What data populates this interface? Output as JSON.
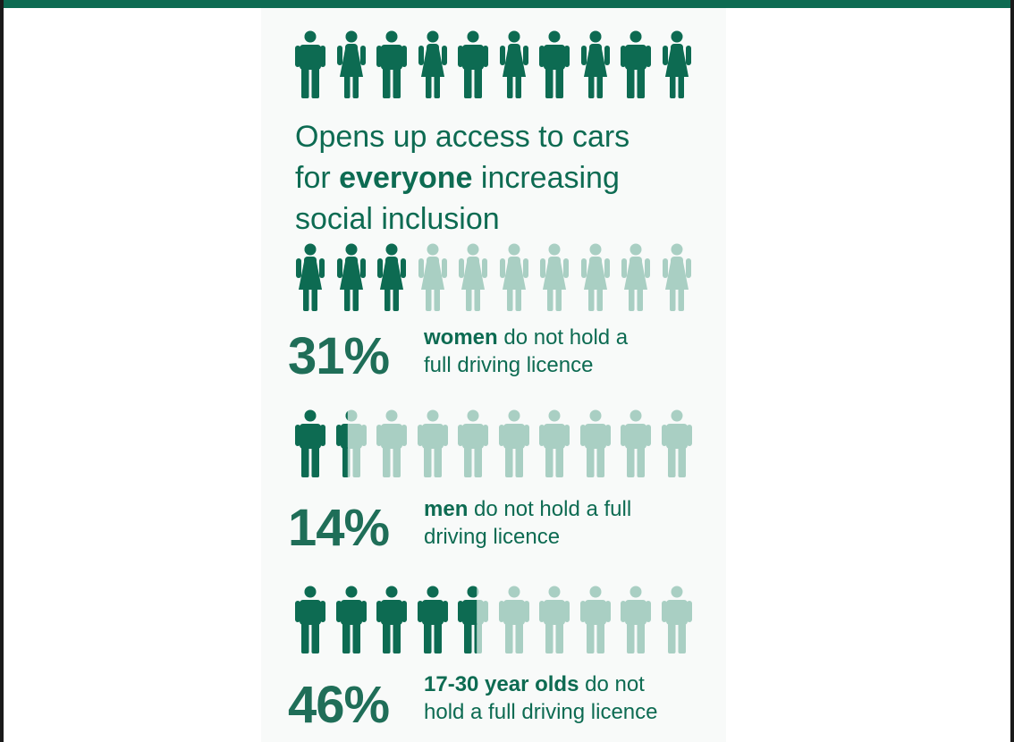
{
  "headline": {
    "line1": "Opens up access to cars",
    "line2_pre": "for ",
    "line2_bold": "everyone",
    "line2_post": " increasing",
    "line3": "social inclusion"
  },
  "colors": {
    "dark": "#0d6b52",
    "light": "#a9cfc3",
    "bar": "#0d6b52"
  },
  "icons": {
    "man": "man-icon",
    "woman": "woman-icon"
  },
  "rows": {
    "intro": {
      "figures": [
        "man",
        "woman",
        "man",
        "woman",
        "man",
        "woman",
        "man",
        "woman",
        "man",
        "woman"
      ],
      "filled": 10
    },
    "women": {
      "figures": [
        "woman",
        "woman",
        "woman",
        "woman",
        "woman",
        "woman",
        "woman",
        "woman",
        "woman",
        "woman"
      ],
      "filled": 3.1
    },
    "men": {
      "figures": [
        "man",
        "man",
        "man",
        "man",
        "man",
        "man",
        "man",
        "man",
        "man",
        "man"
      ],
      "filled": 1.4
    },
    "young": {
      "figures": [
        "man",
        "man",
        "man",
        "man",
        "man",
        "man",
        "man",
        "man",
        "man",
        "man"
      ],
      "filled": 4.6
    }
  },
  "stats": {
    "women": {
      "value": "31%",
      "bold": "women",
      "rest1": " do not hold a",
      "rest2": "full driving licence"
    },
    "men": {
      "value": "14%",
      "bold": "men",
      "rest1": " do not hold a full",
      "rest2": "driving licence"
    },
    "young": {
      "value": "46%",
      "bold": "17-30 year olds",
      "rest1": " do not",
      "rest2": "hold a full driving licence"
    }
  }
}
